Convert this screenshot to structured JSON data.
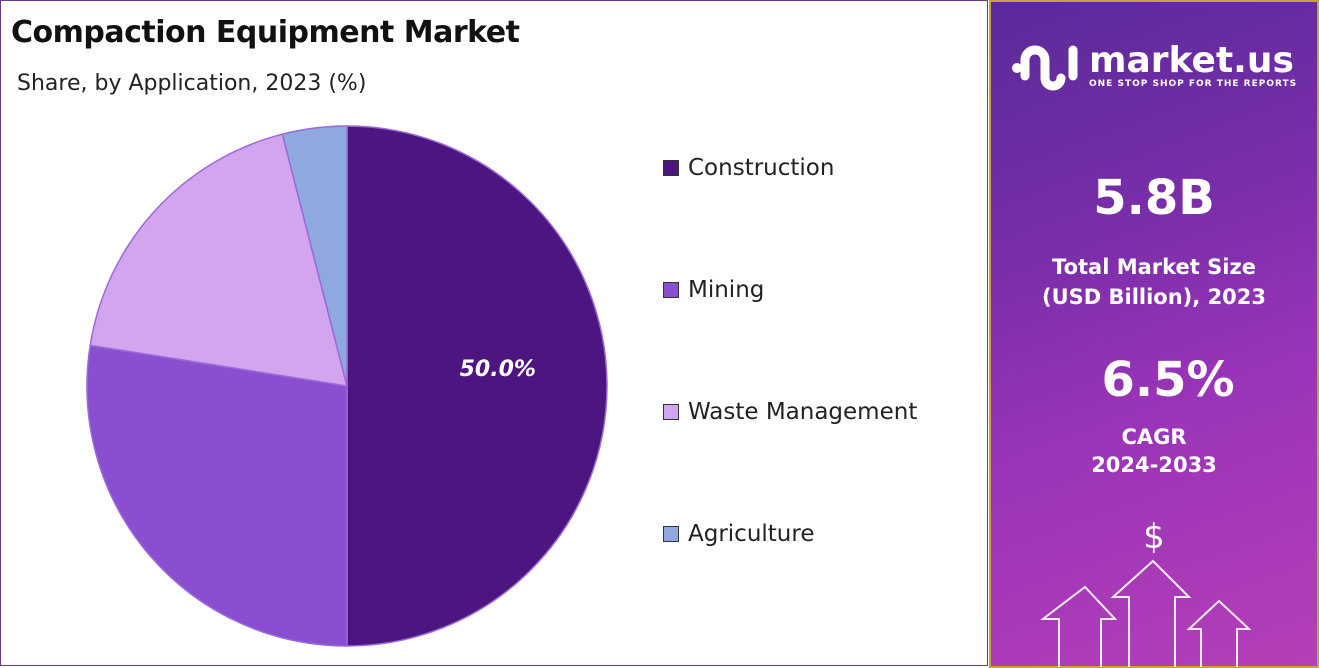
{
  "title": "Compaction Equipment Market",
  "subtitle": "Share, by Application, 2023 (%)",
  "chart_data": {
    "type": "pie",
    "categories": [
      "Construction",
      "Mining",
      "Waste Management",
      "Agriculture"
    ],
    "values": [
      50.0,
      27.5,
      18.5,
      4.0
    ],
    "colors": [
      "#4d1580",
      "#8a4fd0",
      "#d4a5ef",
      "#8fa8e0"
    ],
    "data_labels": [
      "50.0%",
      "",
      "",
      ""
    ],
    "legend_placement": "right"
  },
  "panel": {
    "logo_name": "market.us",
    "logo_tagline": "ONE STOP SHOP FOR THE REPORTS",
    "market_size": "5.8B",
    "market_size_label_1": "Total Market Size",
    "market_size_label_2": "(USD Billion), 2023",
    "cagr": "6.5%",
    "cagr_label_1": "CAGR",
    "cagr_label_2": "2024-2033",
    "dollar_symbol": "$"
  }
}
